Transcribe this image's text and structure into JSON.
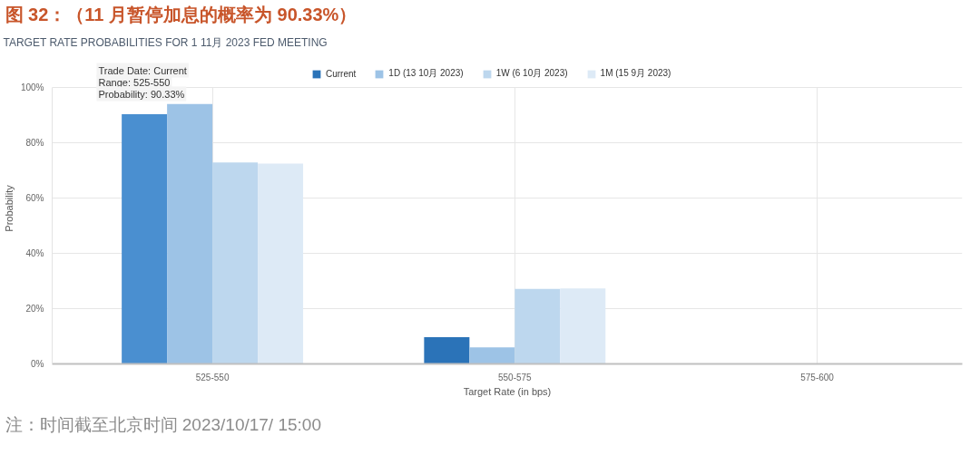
{
  "chart_data": {
    "type": "bar",
    "title": "图 32：（11 月暂停加息的概率为 90.33%）",
    "subtitle": "TARGET RATE PROBABILITIES FOR 1 11月 2023 FED MEETING",
    "xlabel": "Target Rate (in bps)",
    "ylabel": "Probability",
    "categories": [
      "525-550",
      "550-575",
      "575-600"
    ],
    "series": [
      {
        "name": "Current",
        "color": "#2b73b8",
        "colors": [
          "#4a8fd0",
          "#2b73b8",
          "#2b73b8"
        ],
        "values": [
          90.33,
          9.7,
          0
        ]
      },
      {
        "name": "1D (13 10月 2023)",
        "color": "#9dc3e6",
        "values": [
          94,
          6,
          0
        ]
      },
      {
        "name": "1W (6 10月 2023)",
        "color": "#bdd7ee",
        "values": [
          72.9,
          27.1,
          0
        ]
      },
      {
        "name": "1M (15 9月 2023)",
        "color": "#ddeaf6",
        "values": [
          72.5,
          27.3,
          0
        ]
      }
    ],
    "ylim": [
      0,
      100
    ],
    "yticks": [
      {
        "value": 0,
        "label": "0%"
      },
      {
        "value": 20,
        "label": "20%"
      },
      {
        "value": 40,
        "label": "40%"
      },
      {
        "value": 60,
        "label": "60%"
      },
      {
        "value": 80,
        "label": "80%"
      },
      {
        "value": 100,
        "label": "100%"
      }
    ],
    "grid": true,
    "legend": "top",
    "annotations": [
      "Trade Date: Current\nRange: 525-550\nProbability: 90.33%",
      "注：时间截至北京时间 2023/10/17/ 15:00"
    ]
  }
}
